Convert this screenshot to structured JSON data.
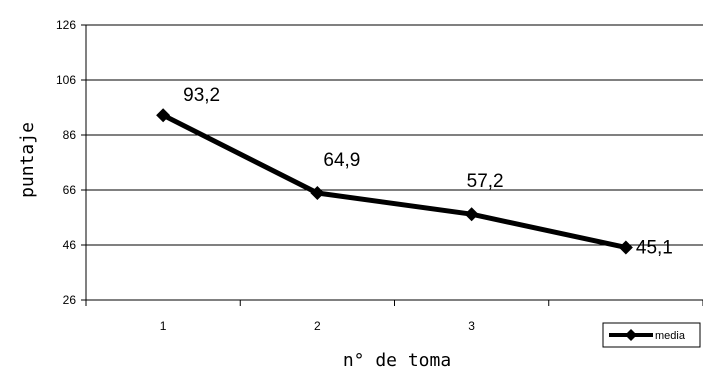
{
  "chart_data": {
    "type": "line",
    "x": [
      1,
      2,
      3,
      4
    ],
    "xtick_labels": [
      "1",
      "2",
      "3"
    ],
    "series": [
      {
        "name": "media",
        "values": [
          93.2,
          64.9,
          57.2,
          45.1
        ],
        "color": "#000000",
        "marker": "diamond"
      }
    ],
    "data_labels": [
      "93,2",
      "64,9",
      "57,2",
      "45,1"
    ],
    "ytick_labels": [
      "26",
      "46",
      "66",
      "86",
      "106",
      "126"
    ],
    "ylim": [
      26,
      126
    ],
    "xlabel": "n° de toma",
    "ylabel": "puntaje",
    "title": "",
    "grid": true,
    "legend_position": "bottom-right"
  }
}
